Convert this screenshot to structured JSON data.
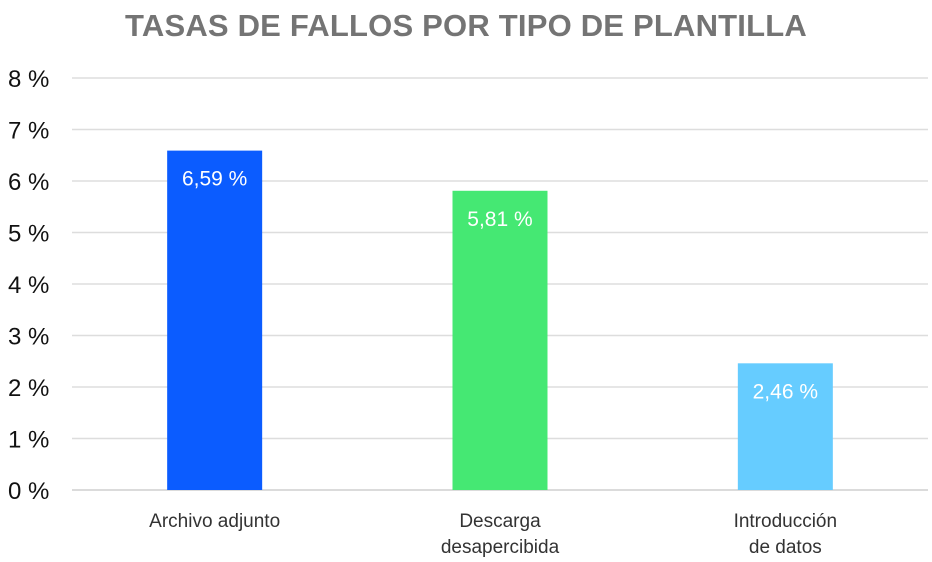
{
  "chart_data": {
    "type": "bar",
    "title": "TASAS DE FALLOS POR TIPO DE PLANTILLA",
    "categories": [
      [
        "Archivo adjunto"
      ],
      [
        "Descarga",
        "desapercibida"
      ],
      [
        "Introducción",
        "de datos"
      ]
    ],
    "values": [
      6.59,
      5.81,
      2.46
    ],
    "data_labels": [
      "6,59 %",
      "5,81 %",
      "2,46 %"
    ],
    "colors": [
      "#0b5cff",
      "#45e873",
      "#66ccff"
    ],
    "y_ticks": [
      "0 %",
      "1 %",
      "2 %",
      "3 %",
      "4 %",
      "5 %",
      "6 %",
      "7 %",
      "8 %"
    ],
    "ylim": [
      0,
      8
    ],
    "grid": true,
    "legend": "none"
  }
}
